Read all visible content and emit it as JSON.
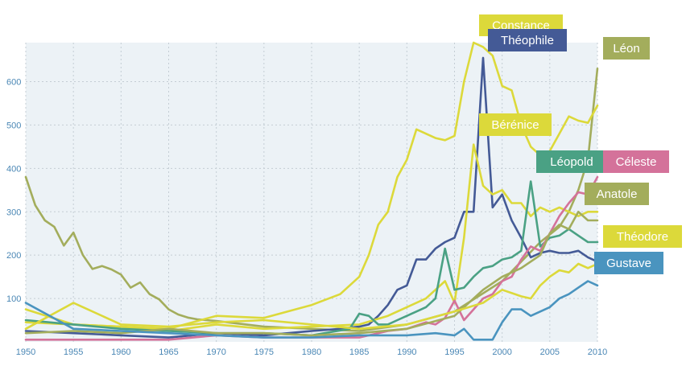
{
  "chart_data": {
    "type": "line",
    "title": "",
    "xlabel": "",
    "ylabel": "",
    "xlim": [
      1950,
      2010
    ],
    "ylim": [
      0,
      690
    ],
    "x_ticks": [
      1950,
      1955,
      1960,
      1965,
      1970,
      1975,
      1980,
      1985,
      1990,
      1995,
      2000,
      2005,
      2010
    ],
    "y_ticks": [
      100,
      200,
      300,
      400,
      500,
      600
    ],
    "grid": true,
    "legend": "direct labels near line ends",
    "series": [
      {
        "name": "Léon",
        "color": "#a3ad5c",
        "x": [
          1950,
          1951,
          1952,
          1953,
          1954,
          1955,
          1956,
          1957,
          1958,
          1959,
          1960,
          1961,
          1962,
          1963,
          1964,
          1965,
          1966,
          1967,
          1968,
          1969,
          1970,
          1975,
          1980,
          1985,
          1990,
          1995,
          2000,
          2002,
          2004,
          2006,
          2007,
          2008,
          2009,
          2010
        ],
        "values": [
          380,
          315,
          280,
          265,
          222,
          252,
          200,
          168,
          175,
          167,
          155,
          125,
          137,
          110,
          98,
          75,
          63,
          56,
          52,
          50,
          48,
          35,
          30,
          25,
          40,
          70,
          140,
          185,
          230,
          265,
          300,
          350,
          420,
          630
        ]
      },
      {
        "name": "Constance",
        "color": "#dcd93a",
        "x": [
          1950,
          1955,
          1960,
          1965,
          1970,
          1975,
          1980,
          1983,
          1985,
          1986,
          1987,
          1988,
          1989,
          1990,
          1991,
          1992,
          1993,
          1994,
          1995,
          1996,
          1997,
          1998,
          1999,
          2000,
          2001,
          2002,
          2003,
          2004,
          2005,
          2006,
          2007,
          2008,
          2009,
          2010
        ],
        "values": [
          75,
          40,
          35,
          30,
          60,
          55,
          85,
          110,
          150,
          200,
          270,
          300,
          380,
          420,
          490,
          480,
          470,
          465,
          475,
          600,
          690,
          680,
          660,
          590,
          580,
          500,
          450,
          430,
          440,
          480,
          520,
          510,
          505,
          545
        ]
      },
      {
        "name": "Théophile",
        "color": "#445a96",
        "x": [
          1950,
          1955,
          1960,
          1965,
          1970,
          1975,
          1980,
          1983,
          1985,
          1986,
          1987,
          1988,
          1989,
          1990,
          1991,
          1992,
          1993,
          1994,
          1995,
          1996,
          1997,
          1998,
          1999,
          2000,
          2001,
          2002,
          2003,
          2004,
          2005,
          2006,
          2007,
          2008,
          2009,
          2010
        ],
        "values": [
          25,
          20,
          15,
          10,
          20,
          15,
          25,
          30,
          35,
          40,
          60,
          85,
          120,
          130,
          190,
          190,
          215,
          230,
          240,
          300,
          300,
          655,
          310,
          340,
          280,
          240,
          195,
          205,
          210,
          205,
          205,
          210,
          195,
          185
        ]
      },
      {
        "name": "Bérénice",
        "color": "#dcd93a",
        "x": [
          1950,
          1955,
          1960,
          1965,
          1970,
          1975,
          1980,
          1985,
          1988,
          1990,
          1992,
          1994,
          1995,
          1996,
          1997,
          1998,
          1999,
          2000,
          2001,
          2002,
          2003,
          2004,
          2005,
          2006,
          2007,
          2008,
          2009,
          2010
        ],
        "values": [
          45,
          40,
          35,
          25,
          40,
          30,
          35,
          40,
          60,
          80,
          100,
          140,
          90,
          240,
          455,
          360,
          340,
          350,
          320,
          320,
          290,
          310,
          300,
          310,
          300,
          290,
          300,
          300
        ]
      },
      {
        "name": "Léopold",
        "color": "#4aa184",
        "x": [
          1950,
          1955,
          1960,
          1965,
          1970,
          1975,
          1980,
          1984,
          1985,
          1986,
          1987,
          1988,
          1989,
          1990,
          1991,
          1992,
          1993,
          1994,
          1995,
          1996,
          1997,
          1998,
          1999,
          2000,
          2001,
          2002,
          2003,
          2004,
          2005,
          2006,
          2007,
          2008,
          2009,
          2010
        ],
        "values": [
          50,
          40,
          30,
          25,
          20,
          20,
          15,
          30,
          65,
          60,
          40,
          40,
          50,
          60,
          70,
          80,
          100,
          215,
          120,
          125,
          150,
          170,
          175,
          190,
          195,
          210,
          370,
          220,
          240,
          245,
          260,
          245,
          230,
          230
        ]
      },
      {
        "name": "Céleste",
        "color": "#d4729a",
        "x": [
          1950,
          1955,
          1960,
          1965,
          1970,
          1975,
          1980,
          1985,
          1988,
          1990,
          1992,
          1993,
          1994,
          1995,
          1996,
          1997,
          1998,
          1999,
          2000,
          2001,
          2002,
          2003,
          2004,
          2005,
          2006,
          2007,
          2008,
          2009,
          2010
        ],
        "values": [
          5,
          5,
          5,
          5,
          15,
          10,
          10,
          10,
          25,
          30,
          45,
          40,
          55,
          95,
          50,
          75,
          100,
          110,
          140,
          150,
          190,
          220,
          210,
          250,
          290,
          320,
          345,
          340,
          380
        ]
      },
      {
        "name": "Anatole",
        "color": "#a3ad5c",
        "x": [
          1950,
          1955,
          1960,
          1965,
          1970,
          1975,
          1980,
          1985,
          1990,
          1995,
          1998,
          2000,
          2002,
          2004,
          2005,
          2006,
          2007,
          2008,
          2009,
          2010
        ],
        "values": [
          20,
          25,
          20,
          30,
          20,
          20,
          15,
          20,
          30,
          60,
          120,
          150,
          170,
          200,
          250,
          270,
          260,
          300,
          280,
          280
        ]
      },
      {
        "name": "Théodore",
        "color": "#dcd93a",
        "x": [
          1950,
          1955,
          1960,
          1965,
          1970,
          1975,
          1980,
          1985,
          1990,
          1995,
          1998,
          2000,
          2002,
          2003,
          2004,
          2005,
          2006,
          2007,
          2008,
          2009,
          2010
        ],
        "values": [
          30,
          90,
          40,
          35,
          45,
          50,
          40,
          30,
          40,
          70,
          90,
          120,
          105,
          100,
          130,
          150,
          165,
          160,
          180,
          170,
          180
        ]
      },
      {
        "name": "Gustave",
        "color": "#4a94bf",
        "x": [
          1950,
          1955,
          1960,
          1965,
          1970,
          1975,
          1980,
          1985,
          1990,
          1993,
          1995,
          1996,
          1997,
          1998,
          1999,
          2000,
          2001,
          2002,
          2003,
          2004,
          2005,
          2006,
          2007,
          2008,
          2009,
          2010
        ],
        "values": [
          90,
          30,
          25,
          20,
          15,
          10,
          10,
          15,
          15,
          20,
          15,
          30,
          5,
          5,
          5,
          45,
          75,
          75,
          60,
          70,
          80,
          100,
          110,
          125,
          140,
          130
        ]
      }
    ]
  },
  "labels": [
    {
      "series": "Constance",
      "text": "Constance",
      "color": "#dcd93a"
    },
    {
      "series": "Théophile",
      "text": "Théophile",
      "color": "#445a96"
    },
    {
      "series": "Léon",
      "text": "Léon",
      "color": "#a3ad5c"
    },
    {
      "series": "Bérénice",
      "text": "Bérénice",
      "color": "#dcd93a"
    },
    {
      "series": "Léopold",
      "text": "Léopold",
      "color": "#4aa184"
    },
    {
      "series": "Céleste",
      "text": "Céleste",
      "color": "#d4729a"
    },
    {
      "series": "Anatole",
      "text": "Anatole",
      "color": "#a3ad5c"
    },
    {
      "series": "Théodore",
      "text": "Théodore",
      "color": "#dcd93a"
    },
    {
      "series": "Gustave",
      "text": "Gustave",
      "color": "#4a94bf"
    }
  ]
}
